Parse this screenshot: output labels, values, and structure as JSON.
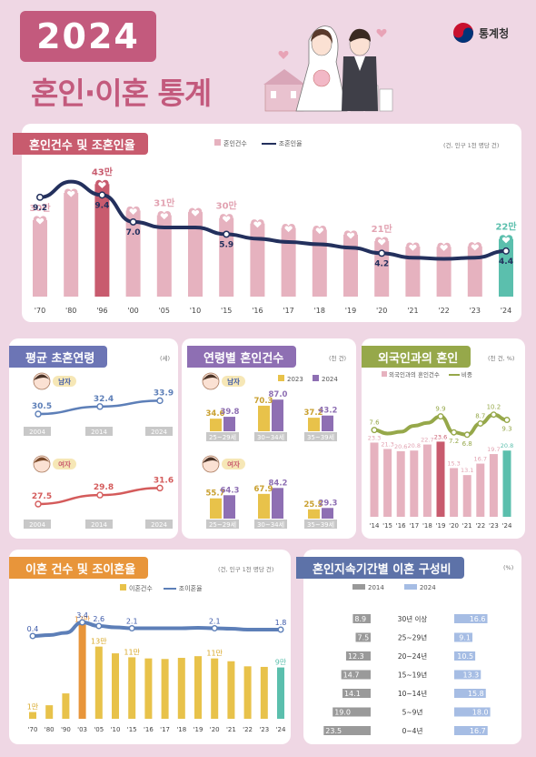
{
  "header": {
    "year": "2024",
    "title": "혼인·이혼 통계",
    "agency": "통계청"
  },
  "colors": {
    "pink": "#e6b2bf",
    "dark_pink": "#c85b6e",
    "navy": "#23305d",
    "olive": "#96a84a",
    "teal": "#5bbfad",
    "orange": "#e8953a",
    "yellow": "#e8c24a",
    "blue": "#8aa6d6",
    "gray": "#999999",
    "purple": "#8e6fb3"
  },
  "marriage": {
    "title": "혼인건수 및 조혼인율",
    "unit": "(건, 인구 1천 명당 건)",
    "legend": {
      "bars": "혼인건수",
      "line": "조혼인율"
    },
    "chart_data": {
      "type": "bar+line",
      "categories": [
        "'70",
        "'80",
        "'96",
        "'00",
        "'05",
        "'10",
        "'15",
        "'16",
        "'17",
        "'18",
        "'19",
        "'20",
        "'21",
        "'22",
        "'23",
        "'24"
      ],
      "bars": {
        "name": "혼인건수",
        "values": [
          295,
          400,
          434,
          332,
          314,
          326,
          303,
          282,
          265,
          258,
          239,
          214,
          193,
          192,
          194,
          222
        ],
        "labels": [
          "30만",
          "",
          "43만",
          "",
          "31만",
          "",
          "30만",
          "",
          "",
          "",
          "",
          "21만",
          "",
          "",
          "",
          "22만"
        ]
      },
      "line": {
        "name": "조혼인율",
        "values": [
          9.2,
          10.6,
          9.4,
          7.0,
          6.5,
          6.5,
          5.9,
          5.5,
          5.2,
          5.0,
          4.7,
          4.2,
          3.8,
          3.7,
          3.8,
          4.4
        ],
        "labels": [
          "9.2",
          "",
          "9.4",
          "7.0",
          "",
          "",
          "5.9",
          "",
          "",
          "",
          "",
          "4.2",
          "",
          "",
          "",
          "4.4"
        ]
      },
      "ylim": [
        0,
        500
      ]
    }
  },
  "age": {
    "title": "평균 초혼연령",
    "unit": "(세)",
    "male": {
      "label": "남자",
      "years": [
        "2004",
        "2014",
        "2024"
      ],
      "values": [
        30.5,
        32.4,
        33.9
      ]
    },
    "female": {
      "label": "여자",
      "years": [
        "2004",
        "2014",
        "2024"
      ],
      "values": [
        27.5,
        29.8,
        31.6
      ]
    }
  },
  "agegroup": {
    "title": "연령별 혼인건수",
    "unit": "(천 건)",
    "legend": [
      "2023",
      "2024"
    ],
    "male": {
      "label": "남자",
      "categories": [
        "25~29세",
        "30~34세",
        "35~39세"
      ],
      "y2023": [
        34.6,
        70.3,
        37.2
      ],
      "y2024": [
        39.8,
        87.0,
        43.2
      ]
    },
    "female": {
      "label": "여자",
      "categories": [
        "25~29세",
        "30~34세",
        "35~39세"
      ],
      "y2023": [
        55.7,
        67.9,
        25.5
      ],
      "y2024": [
        64.3,
        84.2,
        29.3
      ]
    }
  },
  "foreign": {
    "title": "외국인과의 혼인",
    "unit": "(천 건, %)",
    "legend": {
      "bars": "외국인과의 혼인건수",
      "line": "비중"
    },
    "chart_data": {
      "type": "bar+line",
      "categories": [
        "'14",
        "'15",
        "'16",
        "'17",
        "'18",
        "'19",
        "'20",
        "'21",
        "'22",
        "'23",
        "'24"
      ],
      "bars": [
        23.3,
        21.3,
        20.6,
        20.8,
        22.7,
        23.6,
        15.3,
        13.1,
        16.7,
        19.7,
        20.8
      ],
      "line": [
        7.6,
        7.0,
        7.3,
        8.3,
        8.8,
        9.9,
        7.2,
        6.8,
        8.7,
        10.2,
        9.3
      ],
      "line_labels": [
        "7.6",
        "",
        "",
        "",
        "",
        "9.9",
        "7.2",
        "6.8",
        "8.7",
        "10.2",
        "9.3"
      ]
    }
  },
  "divorce": {
    "title": "이혼 건수 및 조이혼율",
    "unit": "(건, 인구 1천 명당 건)",
    "legend": {
      "bars": "이혼건수",
      "line": "조이혼율"
    },
    "chart_data": {
      "type": "bar+line",
      "categories": [
        "'70",
        "'80",
        "'90",
        "'03",
        "'05",
        "'10",
        "'15",
        "'16",
        "'17",
        "'18",
        "'19",
        "'20",
        "'21",
        "'22",
        "'23",
        "'24"
      ],
      "bars": {
        "values": [
          12,
          24,
          45,
          167,
          128,
          116,
          109,
          107,
          106,
          108,
          111,
          107,
          102,
          93,
          92,
          91
        ],
        "labels": [
          "1만",
          "",
          "",
          "17만",
          "13만",
          "",
          "11만",
          "",
          "",
          "",
          "",
          "11만",
          "",
          "",
          "",
          "9만"
        ]
      },
      "line": {
        "values": [
          0.4,
          0.6,
          1.1,
          3.4,
          2.6,
          2.3,
          2.1,
          2.1,
          2.1,
          2.1,
          2.2,
          2.1,
          2.0,
          1.8,
          1.8,
          1.8
        ],
        "labels": [
          "0.4",
          "",
          "",
          "3.4",
          "2.6",
          "",
          "2.1",
          "",
          "",
          "",
          "",
          "2.1",
          "",
          "",
          "",
          "1.8"
        ]
      }
    }
  },
  "duration": {
    "title": "혼인지속기간별 이혼 구성비",
    "unit": "(%)",
    "legend": [
      "2014",
      "2024"
    ],
    "chart_data": {
      "type": "diverging-bar",
      "categories": [
        "30년 이상",
        "25~29년",
        "20~24년",
        "15~19년",
        "10~14년",
        "5~9년",
        "0~4년"
      ],
      "y2014": [
        8.9,
        7.5,
        12.3,
        14.7,
        14.1,
        19.0,
        23.5
      ],
      "y2024": [
        16.6,
        9.1,
        10.5,
        13.3,
        15.8,
        18.0,
        16.7
      ]
    }
  }
}
